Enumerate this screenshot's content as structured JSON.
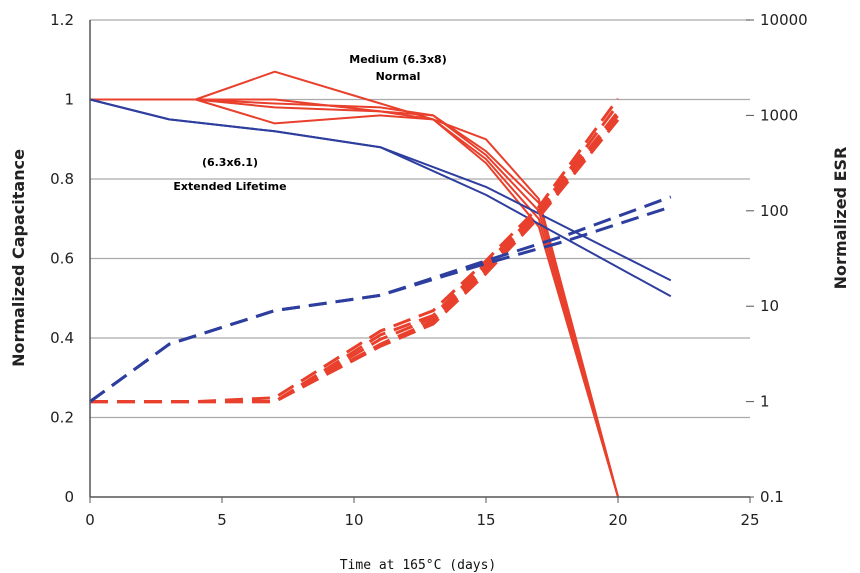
{
  "chart_data": {
    "type": "line",
    "title": "",
    "xlabel": "Time at 165°C (days)",
    "ylabel": "Normalized Capacitance",
    "y2label": "Normalized ESR",
    "xlim": [
      0,
      25
    ],
    "ylim": [
      0,
      1.2
    ],
    "y2lim": [
      0.1,
      10000
    ],
    "y2scale": "log",
    "xticks": [
      "0",
      "5",
      "10",
      "15",
      "20",
      "25"
    ],
    "yticks": [
      "0",
      "0.2",
      "0.4",
      "0.6",
      "0.8",
      "1",
      "1.2"
    ],
    "y2ticks": [
      "0.1",
      "1",
      "10",
      "100",
      "1000",
      "10000"
    ],
    "grid": "horizontal",
    "colors": {
      "medium": "#e8402c",
      "extended": "#2e3e9e",
      "grid": "#aaaaaa"
    },
    "annotations": [
      {
        "text": "Medium (6.3x8)",
        "color": "#e8402c"
      },
      {
        "text": "Normal",
        "color": "#e8402c"
      },
      {
        "text": "(6.3x6.1)",
        "color": "#2e3e9e"
      },
      {
        "text": "Extended Lifetime",
        "color": "#2e3e9e"
      }
    ],
    "series": [
      {
        "group": "medium",
        "measure": "capacitance",
        "axis": "left",
        "style": "solid",
        "x": [
          0,
          4,
          7,
          11,
          13,
          15,
          17,
          20
        ],
        "y": [
          1.0,
          1.0,
          1.07,
          0.99,
          0.95,
          0.9,
          0.75,
          0.0
        ]
      },
      {
        "group": "medium",
        "measure": "capacitance",
        "axis": "left",
        "style": "solid",
        "x": [
          0,
          4,
          7,
          11,
          13,
          15,
          17,
          20
        ],
        "y": [
          1.0,
          1.0,
          0.99,
          0.98,
          0.96,
          0.87,
          0.74,
          0.0
        ]
      },
      {
        "group": "medium",
        "measure": "capacitance",
        "axis": "left",
        "style": "solid",
        "x": [
          0,
          4,
          7,
          11,
          13,
          15,
          17,
          20
        ],
        "y": [
          1.0,
          1.0,
          0.98,
          0.97,
          0.96,
          0.86,
          0.72,
          0.0
        ]
      },
      {
        "group": "medium",
        "measure": "capacitance",
        "axis": "left",
        "style": "solid",
        "x": [
          0,
          4,
          7,
          11,
          13,
          15,
          17,
          20
        ],
        "y": [
          1.0,
          1.0,
          0.94,
          0.96,
          0.95,
          0.85,
          0.7,
          0.0
        ]
      },
      {
        "group": "medium",
        "measure": "capacitance",
        "axis": "left",
        "style": "solid",
        "x": [
          0,
          4,
          7,
          11,
          13,
          15,
          17,
          20
        ],
        "y": [
          1.0,
          1.0,
          1.0,
          0.97,
          0.95,
          0.84,
          0.68,
          0.0
        ]
      },
      {
        "group": "extended",
        "measure": "capacitance",
        "axis": "left",
        "style": "solid",
        "x": [
          0,
          3,
          7,
          11,
          15,
          22
        ],
        "y": [
          1.0,
          0.95,
          0.92,
          0.88,
          0.78,
          0.545
        ]
      },
      {
        "group": "extended",
        "measure": "capacitance",
        "axis": "left",
        "style": "solid",
        "x": [
          0,
          3,
          7,
          11,
          15,
          22
        ],
        "y": [
          1.0,
          0.95,
          0.92,
          0.88,
          0.76,
          0.505
        ]
      },
      {
        "group": "medium",
        "measure": "esr",
        "axis": "right",
        "style": "dashed",
        "x": [
          0,
          4,
          7,
          11,
          13,
          15,
          17,
          20
        ],
        "y": [
          1.0,
          1.0,
          1.1,
          5.5,
          9,
          30,
          110,
          1500
        ]
      },
      {
        "group": "medium",
        "measure": "esr",
        "axis": "right",
        "style": "dashed",
        "x": [
          0,
          4,
          7,
          11,
          13,
          15,
          17,
          20
        ],
        "y": [
          1.0,
          1.0,
          1.0,
          5,
          8,
          28,
          100,
          1300
        ]
      },
      {
        "group": "medium",
        "measure": "esr",
        "axis": "right",
        "style": "dashed",
        "x": [
          0,
          4,
          7,
          11,
          13,
          15,
          17,
          20
        ],
        "y": [
          1.0,
          1.0,
          1.0,
          4.5,
          7.5,
          26,
          95,
          1100
        ]
      },
      {
        "group": "medium",
        "measure": "esr",
        "axis": "right",
        "style": "dashed",
        "x": [
          0,
          4,
          7,
          11,
          13,
          15,
          17,
          20
        ],
        "y": [
          1.0,
          1.0,
          1.0,
          4,
          7,
          24,
          90,
          1000
        ]
      },
      {
        "group": "medium",
        "measure": "esr",
        "axis": "right",
        "style": "dashed",
        "x": [
          0,
          4,
          7,
          11,
          13,
          15,
          17,
          20
        ],
        "y": [
          1.0,
          1.0,
          1.0,
          3.8,
          6.5,
          22,
          85,
          900
        ]
      },
      {
        "group": "extended",
        "measure": "esr",
        "axis": "right",
        "style": "dashed",
        "x": [
          0,
          3,
          7,
          11,
          15,
          18,
          22
        ],
        "y": [
          1.0,
          4,
          9,
          13,
          30,
          55,
          140
        ]
      },
      {
        "group": "extended",
        "measure": "esr",
        "axis": "right",
        "style": "dashed",
        "x": [
          0,
          3,
          7,
          11,
          15,
          18,
          22
        ],
        "y": [
          1.0,
          4,
          9,
          13,
          28,
          48,
          110
        ]
      }
    ]
  }
}
